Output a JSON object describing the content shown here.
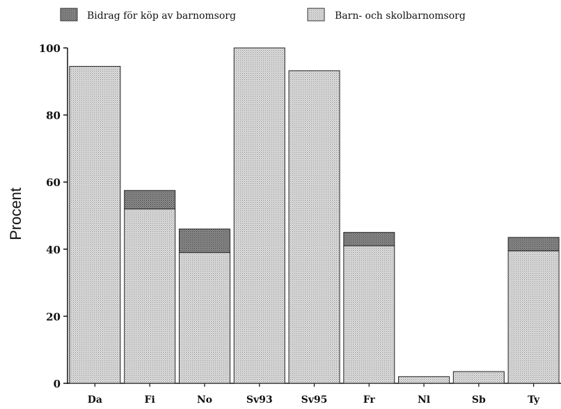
{
  "chart_data": {
    "type": "bar",
    "stacked": true,
    "title": "",
    "xlabel": "",
    "ylabel": "Procent",
    "ylim": [
      0,
      100
    ],
    "yticks": [
      0,
      20,
      40,
      60,
      80,
      100
    ],
    "grid": false,
    "legend_position": "top",
    "categories": [
      "Da",
      "Fi",
      "No",
      "Sv93",
      "Sv95",
      "Fr",
      "Nl",
      "Sb",
      "Ty"
    ],
    "series": [
      {
        "name": "Barn- och skolbarnomsorg",
        "pattern": "light-dotted",
        "color": "#d2d2d2",
        "values": [
          94.5,
          52,
          39,
          100,
          93.2,
          41,
          2,
          3.5,
          39.5
        ]
      },
      {
        "name": "Bidrag för köp av barnomsorg",
        "pattern": "dark-dotted",
        "color": "#8a8a8a",
        "values": [
          0,
          5.5,
          7,
          0,
          0,
          4,
          0,
          0,
          4
        ]
      }
    ],
    "legend_order": [
      "Bidrag för köp av barnomsorg",
      "Barn- och skolbarnomsorg"
    ]
  }
}
